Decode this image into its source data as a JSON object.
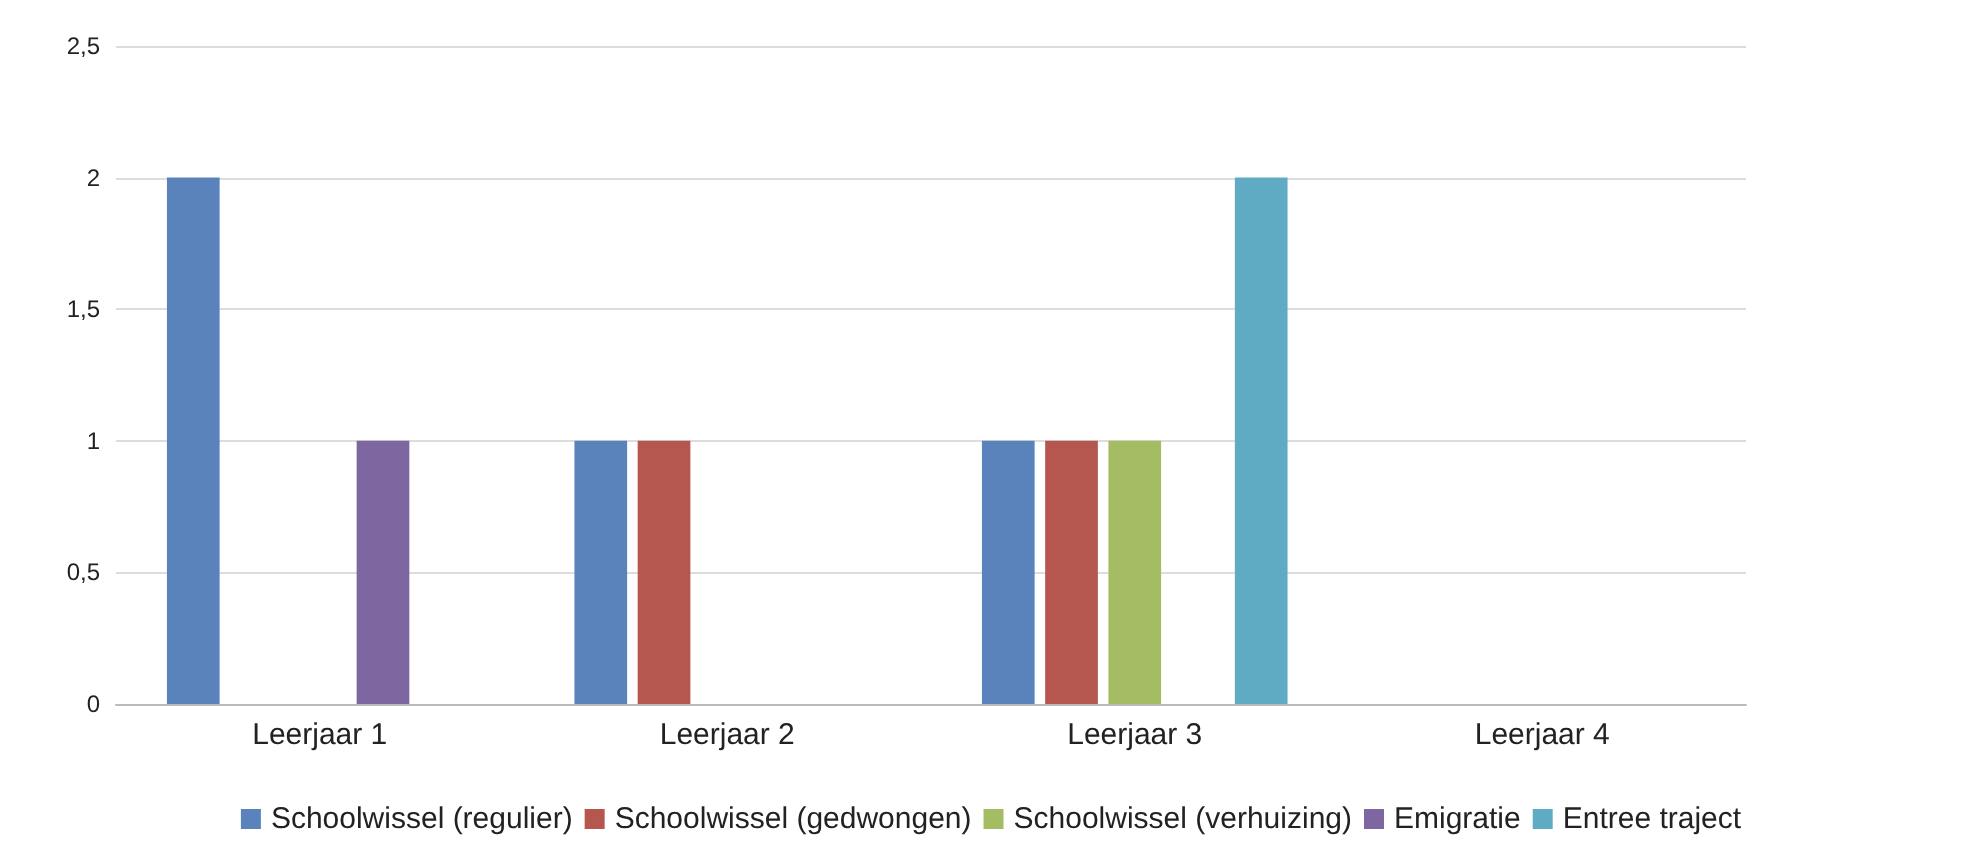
{
  "chart_data": {
    "type": "bar",
    "categories": [
      "Leerjaar 1",
      "Leerjaar 2",
      "Leerjaar 3",
      "Leerjaar 4"
    ],
    "series": [
      {
        "name": "Schoolwissel (regulier)",
        "color": "#5b83bb",
        "values": [
          2,
          1,
          1,
          null
        ]
      },
      {
        "name": "Schoolwissel (gedwongen)",
        "color": "#b5574e",
        "values": [
          null,
          1,
          1,
          null
        ]
      },
      {
        "name": "Schoolwissel (verhuizing)",
        "color": "#a5bd62",
        "values": [
          null,
          null,
          1,
          null
        ]
      },
      {
        "name": "Emigratie",
        "color": "#7e66a0",
        "values": [
          1,
          null,
          null,
          null
        ]
      },
      {
        "name": "Entree traject",
        "color": "#5fabc4",
        "values": [
          null,
          null,
          2,
          null
        ]
      }
    ],
    "ylim": [
      0,
      2.5
    ],
    "yticks": [
      0,
      {
        "value": 0.5,
        "label": "0,5"
      },
      1,
      {
        "value": 1.5,
        "label": "1,5"
      },
      2,
      {
        "value": 2.5,
        "label": "2,5"
      }
    ],
    "grid": "y",
    "legend": "bottom"
  }
}
